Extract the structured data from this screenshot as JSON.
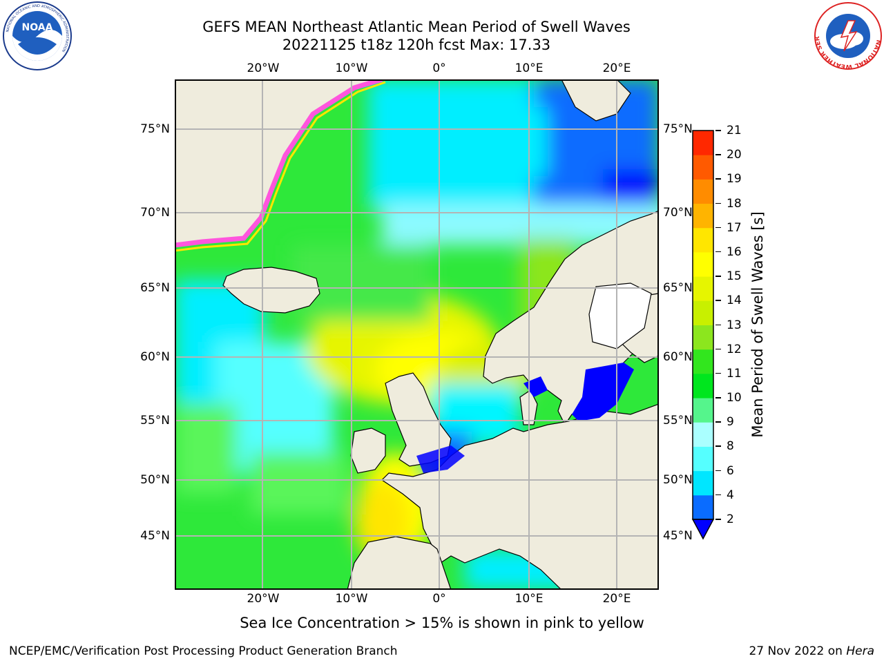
{
  "header": {
    "title_line1": "GEFS MEAN Northeast Atlantic Mean Period of Swell Waves",
    "title_line2": "20221125 t18z 120h fcst   Max: 17.33"
  },
  "logos": {
    "noaa_text": "NOAA",
    "noaa_ring": "NATIONAL OCEANIC AND ATMOSPHERIC ADMINISTRATION",
    "noaa_ring_bottom": "U.S. DEPARTMENT OF COMMERCE",
    "nws_ring": "NATIONAL WEATHER SERVICE"
  },
  "map": {
    "longitude_labels": [
      "20°W",
      "10°W",
      "0°",
      "10°E",
      "20°E"
    ],
    "latitude_labels": [
      "75°N",
      "70°N",
      "65°N",
      "60°N",
      "55°N",
      "50°N",
      "45°N"
    ],
    "colors": {
      "ocean_high": "#d8f000",
      "ocean_green": "#1ee61e",
      "ocean_light": "#5af55a",
      "ocean_cyan": "#00f5ff",
      "ocean_pale": "#8cfaff",
      "ocean_blue": "#0a6cff",
      "ocean_deep": "#0000ff",
      "land": "#efecdd",
      "ice_edge": "#ff55dd",
      "grid": "#b4b4b4"
    }
  },
  "colorbar": {
    "title": "Mean Period of Swell Waves [s]",
    "ticks": [
      "2",
      "4",
      "6",
      "8",
      "9",
      "10",
      "11",
      "12",
      "13",
      "14",
      "15",
      "16",
      "17",
      "18",
      "19",
      "20",
      "21"
    ],
    "colors": [
      "#0a6cff",
      "#00e6ff",
      "#55ffff",
      "#aaffff",
      "#55f58c",
      "#00e61e",
      "#32e61e",
      "#8ce61e",
      "#c8f000",
      "#e6f500",
      "#ffff00",
      "#ffe600",
      "#ffb400",
      "#ff8c00",
      "#ff5a00",
      "#ff2800"
    ],
    "under_color": "#0000ff"
  },
  "footer": {
    "ice_note": "Sea Ice Concentration > 15% is shown in pink to yellow",
    "left": "NCEP/EMC/Verification Post Processing Product Generation Branch",
    "right_date": "27 Nov 2022 on",
    "right_machine": "Hera"
  }
}
